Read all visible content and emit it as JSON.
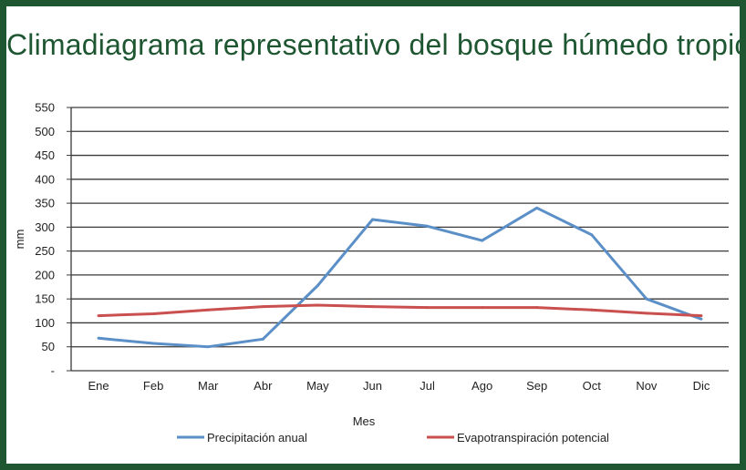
{
  "chart_data": {
    "type": "line",
    "title": "Climadiagrama representativo del bosque húmedo tropical",
    "xlabel": "Mes",
    "ylabel": "mm",
    "categories": [
      "Ene",
      "Feb",
      "Mar",
      "Abr",
      "May",
      "Jun",
      "Jul",
      "Ago",
      "Sep",
      "Oct",
      "Nov",
      "Dic"
    ],
    "ylim": [
      0,
      550
    ],
    "yticks": [
      0,
      50,
      100,
      150,
      200,
      250,
      300,
      350,
      400,
      450,
      500,
      550
    ],
    "ytick_labels": [
      "-",
      "50",
      "100",
      "150",
      "200",
      "250",
      "300",
      "350",
      "400",
      "450",
      "500",
      "550"
    ],
    "grid": true,
    "legend_position": "bottom",
    "series": [
      {
        "name": "Precipitación anual",
        "color": "#5b8fc7",
        "values": [
          68,
          57,
          50,
          66,
          178,
          316,
          302,
          272,
          340,
          284,
          150,
          108
        ]
      },
      {
        "name": "Evapotranspiración potencial",
        "color": "#c9504f",
        "values": [
          115,
          119,
          127,
          134,
          137,
          134,
          132,
          132,
          132,
          127,
          120,
          115
        ]
      }
    ]
  }
}
